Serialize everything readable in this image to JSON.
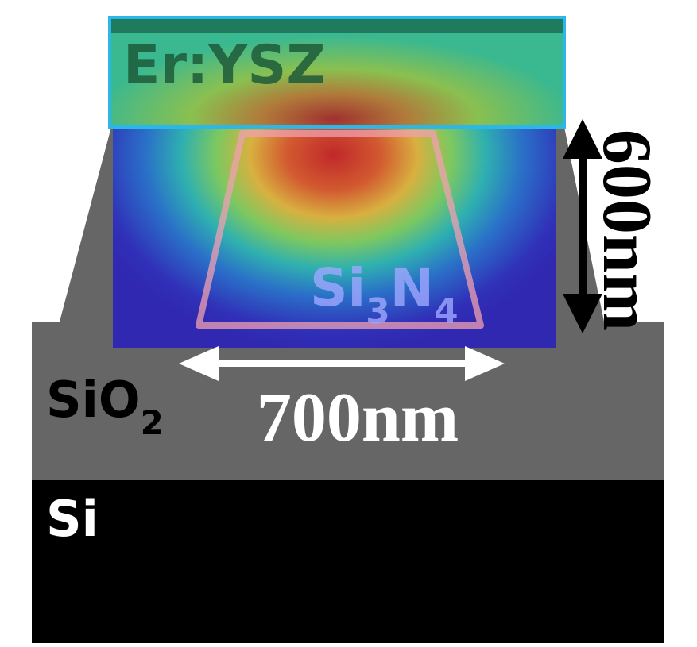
{
  "regions": {
    "er_ysz": "Er:YSZ",
    "si3n4": [
      "Si",
      "3",
      "N",
      "4"
    ],
    "sio2": [
      "SiO",
      "2"
    ],
    "si": "Si"
  },
  "dimensions": {
    "width": "700nm",
    "height": "600nm"
  }
}
